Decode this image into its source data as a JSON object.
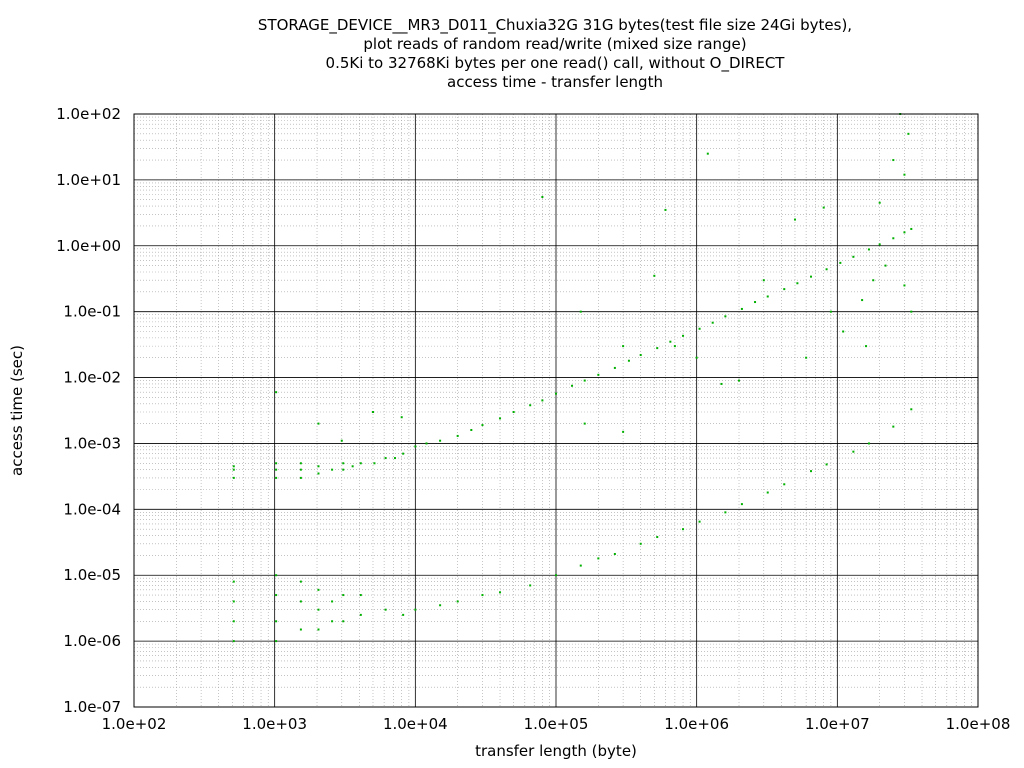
{
  "chart_data": {
    "type": "scatter",
    "title_lines": [
      "STORAGE_DEVICE__MR3_D011_Chuxia32G 31G bytes(test file size 24Gi bytes),",
      "plot reads of random read/write (mixed size range)",
      "0.5Ki to 32768Ki bytes per one read() call, without O_DIRECT",
      "access time - transfer length"
    ],
    "xlabel": "transfer length (byte)",
    "ylabel": "access time (sec)",
    "x_scale": "log",
    "y_scale": "log",
    "xlim": [
      100,
      100000000
    ],
    "ylim": [
      1e-07,
      100
    ],
    "x_ticks": [
      "1.0e+02",
      "1.0e+03",
      "1.0e+04",
      "1.0e+05",
      "1.0e+06",
      "1.0e+07",
      "1.0e+08"
    ],
    "y_ticks": [
      "1.0e-07",
      "1.0e-06",
      "1.0e-05",
      "1.0e-04",
      "1.0e-03",
      "1.0e-02",
      "1.0e-01",
      "1.0e+00",
      "1.0e+01",
      "1.0e+02"
    ],
    "grid": true,
    "marker_color": "#00b000",
    "series": [
      {
        "points": [
          [
            512,
            0.0003
          ],
          [
            512,
            0.0004
          ],
          [
            512,
            0.00045
          ],
          [
            1024,
            0.0003
          ],
          [
            1024,
            0.0004
          ],
          [
            1024,
            0.0005
          ],
          [
            1536,
            0.0003
          ],
          [
            1536,
            0.0004
          ],
          [
            1536,
            0.0005
          ],
          [
            2048,
            0.00035
          ],
          [
            2048,
            0.00045
          ],
          [
            2560,
            0.0004
          ],
          [
            3072,
            0.0004
          ],
          [
            3072,
            0.0005
          ],
          [
            3584,
            0.00045
          ],
          [
            4096,
            0.0005
          ],
          [
            5120,
            0.0005
          ],
          [
            6144,
            0.0006
          ],
          [
            7168,
            0.0006
          ],
          [
            8192,
            0.0007
          ],
          [
            10000,
            0.0009
          ],
          [
            12000,
            0.001
          ],
          [
            15000,
            0.0011
          ],
          [
            20000,
            0.0013
          ],
          [
            25000,
            0.0016
          ],
          [
            30000,
            0.0019
          ],
          [
            40000,
            0.0024
          ],
          [
            50000,
            0.003
          ],
          [
            65536,
            0.0038
          ],
          [
            80000,
            0.0045
          ],
          [
            100000,
            0.0057
          ],
          [
            130000,
            0.0075
          ],
          [
            160000,
            0.009
          ],
          [
            200000,
            0.011
          ],
          [
            262144,
            0.014
          ],
          [
            330000,
            0.018
          ],
          [
            400000,
            0.022
          ],
          [
            524288,
            0.028
          ],
          [
            650000,
            0.035
          ],
          [
            800000,
            0.043
          ],
          [
            1048576,
            0.055
          ],
          [
            1300000,
            0.068
          ],
          [
            1600000,
            0.085
          ],
          [
            2097152,
            0.11
          ],
          [
            2600000,
            0.14
          ],
          [
            3200000,
            0.17
          ],
          [
            4194304,
            0.22
          ],
          [
            5200000,
            0.27
          ],
          [
            6500000,
            0.34
          ],
          [
            8388608,
            0.44
          ],
          [
            10500000,
            0.55
          ],
          [
            13000000,
            0.68
          ],
          [
            16777216,
            0.88
          ],
          [
            20000000,
            1.05
          ],
          [
            25000000,
            1.3
          ],
          [
            30000000,
            1.6
          ],
          [
            33554432,
            1.8
          ]
        ]
      },
      {
        "points": [
          [
            512,
            1e-06
          ],
          [
            512,
            2e-06
          ],
          [
            512,
            4e-06
          ],
          [
            512,
            8e-06
          ],
          [
            1024,
            1e-06
          ],
          [
            1024,
            2e-06
          ],
          [
            1024,
            5e-06
          ],
          [
            1024,
            1e-05
          ],
          [
            1536,
            1.5e-06
          ],
          [
            1536,
            4e-06
          ],
          [
            1536,
            8e-06
          ],
          [
            2048,
            1.5e-06
          ],
          [
            2048,
            3e-06
          ],
          [
            2048,
            6e-06
          ],
          [
            2560,
            2e-06
          ],
          [
            2560,
            4e-06
          ],
          [
            3072,
            2e-06
          ],
          [
            3072,
            5e-06
          ],
          [
            4096,
            2.5e-06
          ],
          [
            4096,
            5e-06
          ],
          [
            6144,
            3e-06
          ],
          [
            8192,
            2.5e-06
          ],
          [
            10000,
            3e-06
          ],
          [
            15000,
            3.5e-06
          ],
          [
            20000,
            4e-06
          ],
          [
            30000,
            5e-06
          ],
          [
            40000,
            5.5e-06
          ],
          [
            65536,
            7e-06
          ],
          [
            100000,
            1e-05
          ],
          [
            150000,
            1.4e-05
          ],
          [
            200000,
            1.8e-05
          ],
          [
            262144,
            2.1e-05
          ],
          [
            400000,
            3e-05
          ],
          [
            524288,
            3.8e-05
          ],
          [
            800000,
            5e-05
          ],
          [
            1048576,
            6.5e-05
          ],
          [
            1600000,
            9e-05
          ],
          [
            2097152,
            0.00012
          ],
          [
            3200000,
            0.00018
          ],
          [
            4194304,
            0.00024
          ],
          [
            6500000,
            0.00038
          ],
          [
            8388608,
            0.00048
          ],
          [
            13000000,
            0.00075
          ],
          [
            16777216,
            0.001
          ],
          [
            25000000,
            0.0018
          ],
          [
            33554432,
            0.0033
          ]
        ]
      },
      {
        "points": [
          [
            1024,
            0.006
          ],
          [
            2048,
            0.002
          ],
          [
            3000,
            0.0011
          ],
          [
            5000,
            0.003
          ],
          [
            8000,
            0.0025
          ],
          [
            80000,
            5.5
          ],
          [
            150000,
            0.1
          ],
          [
            160000,
            0.002
          ],
          [
            300000,
            0.0015
          ],
          [
            300000,
            0.03
          ],
          [
            500000,
            0.35
          ],
          [
            600000,
            3.5
          ],
          [
            700000,
            0.03
          ],
          [
            1000000,
            0.02
          ],
          [
            1200000,
            25
          ],
          [
            1500000,
            0.008
          ],
          [
            2000000,
            0.009
          ],
          [
            3000000,
            0.3
          ],
          [
            5000000,
            2.5
          ],
          [
            6000000,
            0.02
          ],
          [
            8000000,
            3.8
          ],
          [
            9000000,
            0.1
          ],
          [
            11000000,
            0.05
          ],
          [
            15000000,
            0.15
          ],
          [
            16000000,
            0.03
          ],
          [
            18000000,
            0.3
          ],
          [
            20000000,
            4.5
          ],
          [
            22000000,
            0.5
          ],
          [
            25000000,
            20
          ],
          [
            28000000,
            100
          ],
          [
            30000000,
            12
          ],
          [
            30000000,
            0.25
          ],
          [
            32000000,
            50
          ],
          [
            33554432,
            0.1
          ]
        ]
      }
    ]
  }
}
